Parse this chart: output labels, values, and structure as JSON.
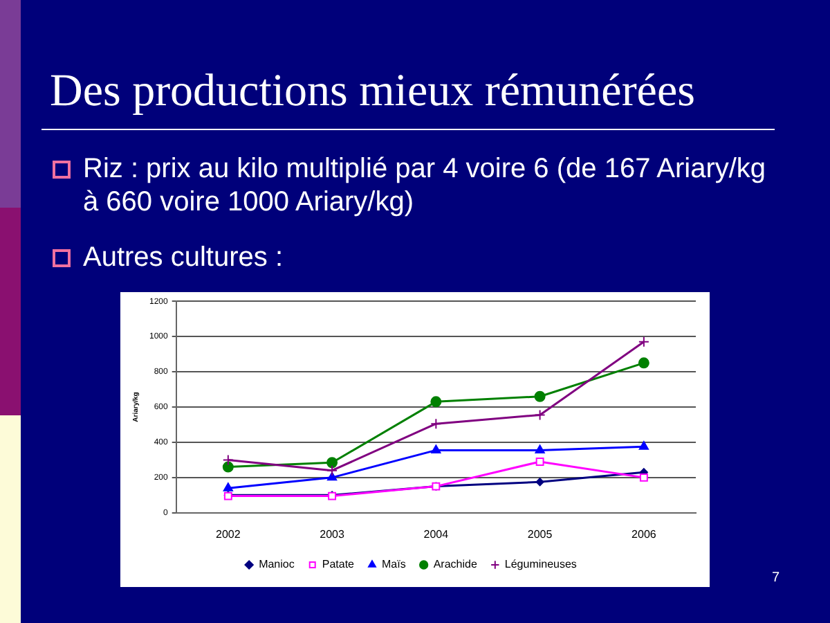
{
  "chart_data": {
    "type": "line",
    "title": "Des productions mieux rémunérées",
    "annotations": [
      "Riz : prix au kilo multiplié par 4 voire 6 (de 167 Ariary/kg à 660 voire 1000 Ariary/kg)",
      "Autres cultures :",
      "7"
    ],
    "ylabel": "Ariary/kg",
    "categories": [
      "2002",
      "2003",
      "2004",
      "2005",
      "2006"
    ],
    "series": [
      {
        "name": "Manioc",
        "color": "#000080",
        "marker": "diamond",
        "values": [
          100,
          100,
          150,
          175,
          230
        ]
      },
      {
        "name": "Patate",
        "color": "#ff00ff",
        "marker": "square",
        "values": [
          95,
          95,
          150,
          290,
          200
        ]
      },
      {
        "name": "Maïs",
        "color": "#0000ff",
        "marker": "triangle",
        "values": [
          140,
          200,
          355,
          355,
          375
        ]
      },
      {
        "name": "Arachide",
        "color": "#008000",
        "marker": "circle",
        "values": [
          260,
          285,
          630,
          660,
          850
        ]
      },
      {
        "name": "Légumineuses",
        "color": "#800080",
        "marker": "cross",
        "values": [
          300,
          240,
          505,
          555,
          970
        ]
      }
    ],
    "ylim": [
      0,
      1200
    ],
    "yticks": [
      0,
      200,
      400,
      600,
      800,
      1000,
      1200
    ],
    "grid": "y",
    "legend": "bottom"
  }
}
